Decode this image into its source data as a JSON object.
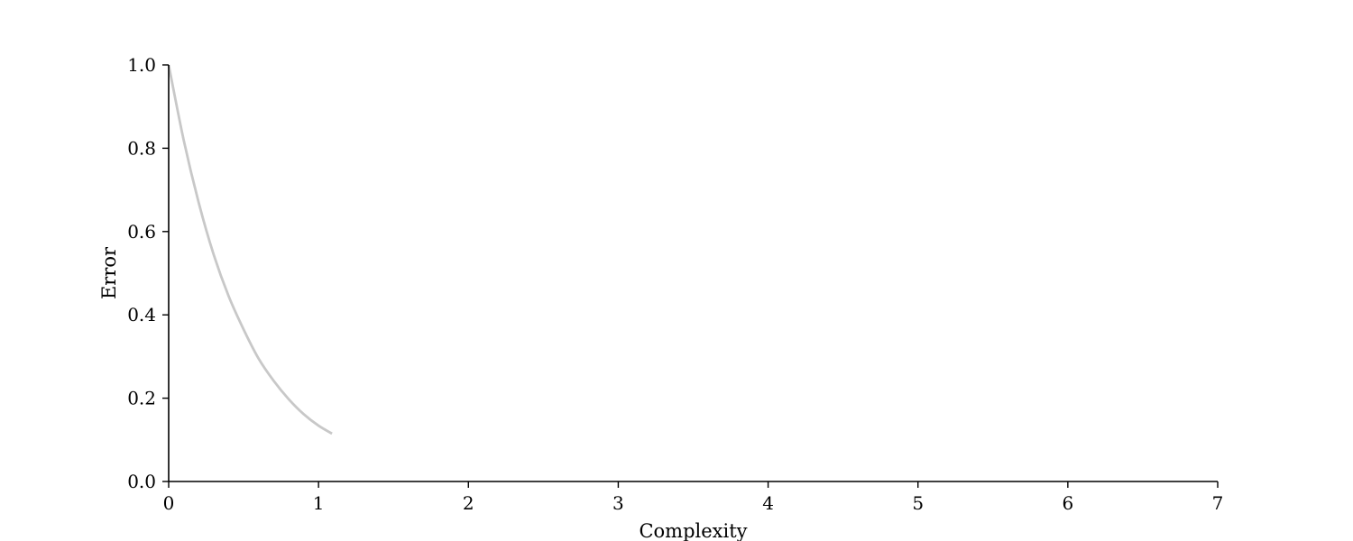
{
  "chart_data": {
    "type": "line",
    "title": "",
    "xlabel": "Complexity",
    "ylabel": "Error",
    "xlim": [
      0,
      7
    ],
    "ylim": [
      0,
      1.0
    ],
    "xticks": [
      0,
      1,
      2,
      3,
      4,
      5,
      6,
      7
    ],
    "xtick_labels": [
      "0",
      "1",
      "2",
      "3",
      "4",
      "5",
      "6",
      "7"
    ],
    "yticks": [
      0,
      0.2,
      0.4,
      0.6,
      0.8,
      1.0
    ],
    "ytick_labels": [
      "0.0",
      "0.2",
      "0.4",
      "0.6",
      "0.8",
      "1.0"
    ],
    "grid": false,
    "legend": "none",
    "series": [
      {
        "color": "#c8c8c8",
        "x": [
          0.0,
          0.1,
          0.2,
          0.3,
          0.4,
          0.5,
          0.6,
          0.7,
          0.8,
          0.9,
          1.0,
          1.09
        ],
        "y": [
          1.0,
          0.82,
          0.67,
          0.545,
          0.445,
          0.365,
          0.295,
          0.242,
          0.198,
          0.162,
          0.134,
          0.115
        ]
      }
    ]
  }
}
